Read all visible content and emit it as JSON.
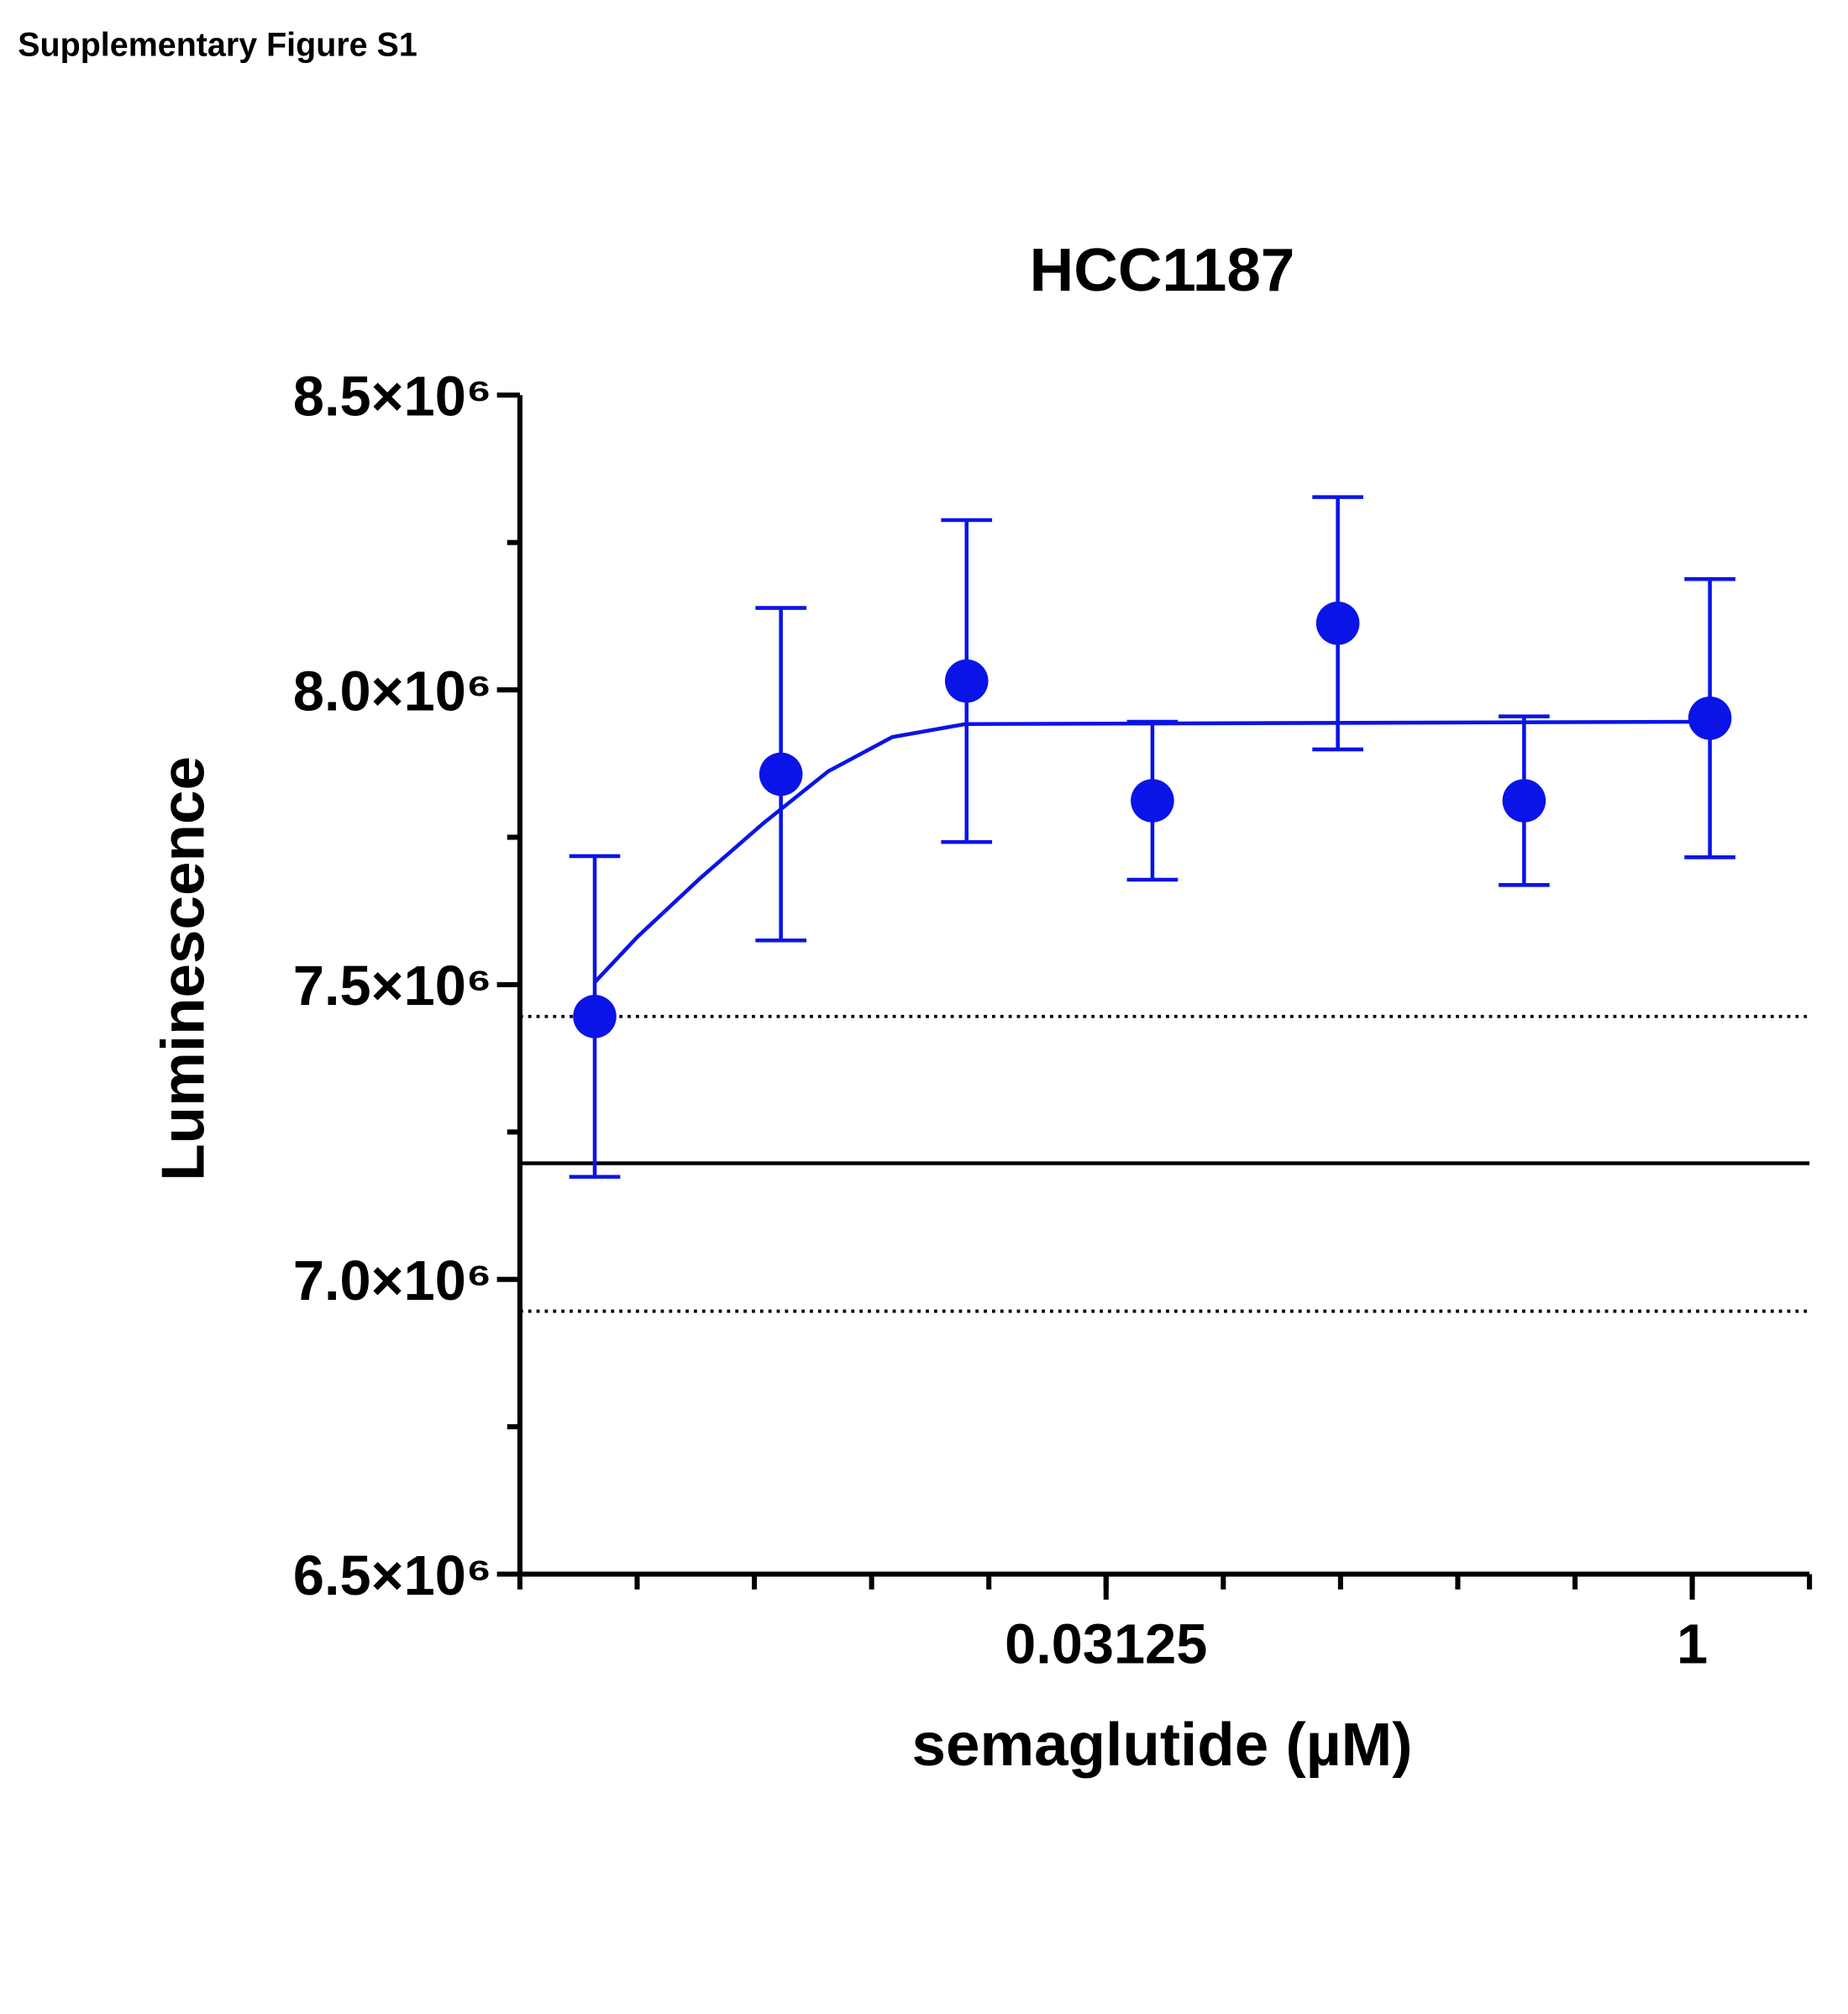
{
  "header": {
    "text": "Supplementary Figure S1"
  },
  "chart_data": {
    "type": "scatter",
    "title": "HCC1187",
    "x_label": "semaglutide (µM)",
    "y_label": "Luminescence",
    "x_scale": "log2",
    "xlim": [
      0.0009765625,
      2
    ],
    "ylim": [
      6500000,
      8500000
    ],
    "xticks": [
      0.03125,
      1
    ],
    "xminor": [
      0.0009765625,
      0.001953125,
      0.00390625,
      0.0078125,
      0.015625,
      0.03125,
      0.0625,
      0.125,
      0.25,
      0.5,
      1,
      2
    ],
    "yticks": [
      {
        "value": 6500000,
        "label": "6.5×10⁶"
      },
      {
        "value": 7000000,
        "label": "7.0×10⁶"
      },
      {
        "value": 7500000,
        "label": "7.5×10⁶"
      },
      {
        "value": 8000000,
        "label": "8.0×10⁶"
      },
      {
        "value": 8500000,
        "label": "8.5×10⁶"
      }
    ],
    "yminor": [
      6750000,
      7250000,
      7750000,
      8250000
    ],
    "series": [
      {
        "color": "#0a14e6",
        "x": [
          0.00152,
          0.00457,
          0.0137,
          0.0411,
          0.123,
          0.37,
          1.11
        ],
        "values": [
          7446000,
          7857000,
          8015000,
          7812000,
          8113000,
          7812000,
          7952000
        ],
        "errors": [
          272000,
          282000,
          273000,
          134000,
          214000,
          143000,
          236000
        ]
      }
    ],
    "fit": {
      "color": "#0a14e6",
      "x": [
        0.00152,
        0.00195,
        0.00283,
        0.00414,
        0.00605,
        0.00883,
        0.0136,
        1.11
      ],
      "values": [
        7504000,
        7580000,
        7680000,
        7775000,
        7862000,
        7920000,
        7942000,
        7946000
      ]
    },
    "reference_lines": [
      {
        "value": 7197000,
        "style": "solid"
      },
      {
        "value": 7446000,
        "style": "dotted"
      },
      {
        "value": 6946000,
        "style": "dotted"
      }
    ]
  }
}
